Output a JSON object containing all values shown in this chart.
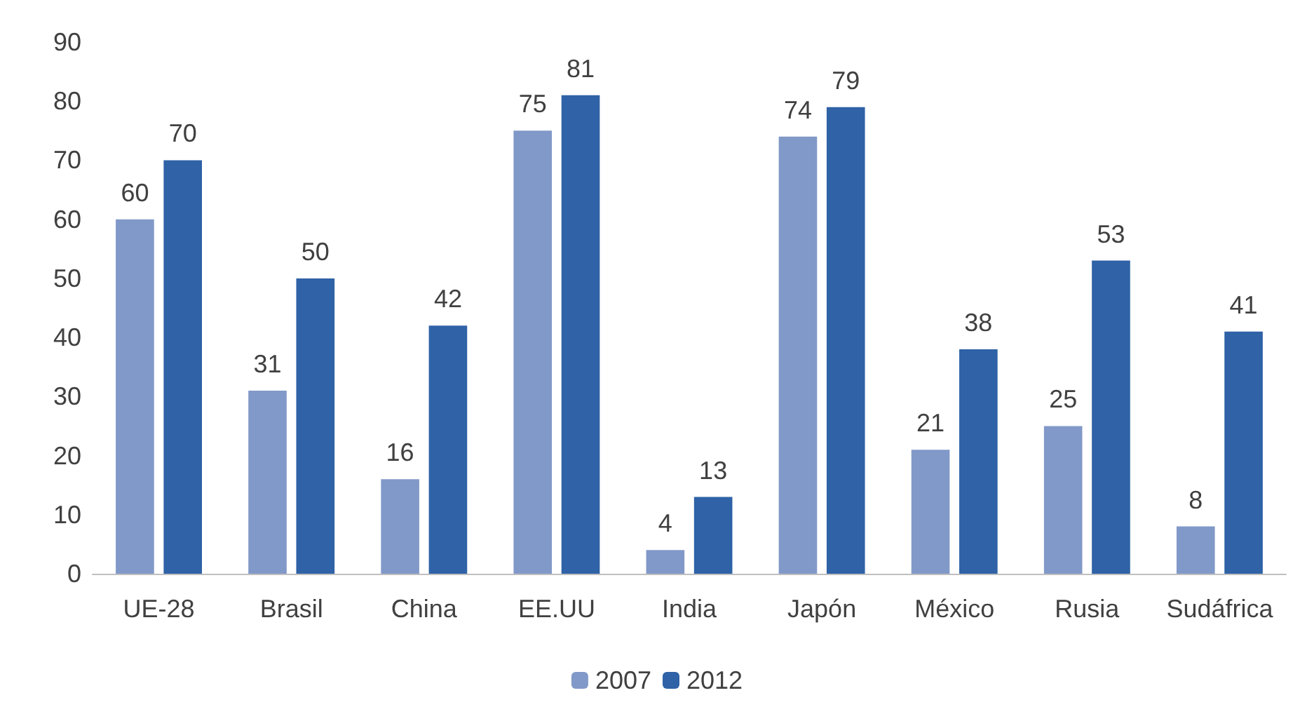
{
  "chart_data": {
    "type": "bar",
    "categories": [
      "UE-28",
      "Brasil",
      "China",
      "EE.UU",
      "India",
      "Japón",
      "México",
      "Rusia",
      "Sudáfrica"
    ],
    "series": [
      {
        "name": "2007",
        "color": "#8199c8",
        "values": [
          60,
          31,
          16,
          75,
          4,
          74,
          21,
          25,
          8
        ]
      },
      {
        "name": "2012",
        "color": "#2f62a6",
        "values": [
          70,
          50,
          42,
          81,
          13,
          79,
          38,
          53,
          41
        ]
      }
    ],
    "ylim": [
      0,
      90
    ],
    "yticks": [
      0,
      10,
      20,
      30,
      40,
      50,
      60,
      70,
      80,
      90
    ],
    "grid": false,
    "legend": "bottom",
    "data_labels": true
  }
}
